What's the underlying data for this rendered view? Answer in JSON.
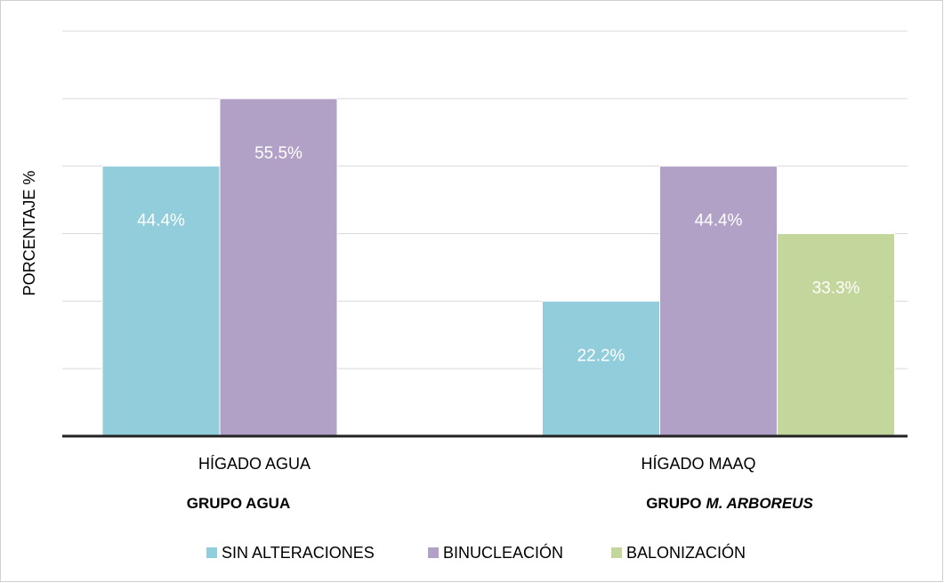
{
  "chart_data": {
    "type": "bar",
    "y_label": "PORCENTAJE  %",
    "categories": [
      "HÍGADO AGUA",
      "HÍGADO MAAQ"
    ],
    "groups": [
      [
        "GRUPO AGUA"
      ],
      [
        "GRUPO",
        "M. ARBOREUS"
      ]
    ],
    "series": [
      {
        "name": "SIN ALTERACIONES",
        "color": "#92cddc",
        "values": [
          44.4,
          22.2
        ],
        "value_labels": [
          "44.4%",
          "22.2%"
        ]
      },
      {
        "name": "BINUCLEACIÓN",
        "color": "#b2a1c7",
        "values": [
          55.5,
          44.4
        ],
        "value_labels": [
          "55.5%",
          "44.4%"
        ]
      },
      {
        "name": "BALONIZACIÓN",
        "color": "#c3d69b",
        "values": [
          null,
          33.3
        ],
        "value_labels": [
          null,
          "33.3%"
        ]
      }
    ],
    "ylim": [
      0,
      66.6
    ],
    "yticks": [
      0,
      11.1,
      22.2,
      33.3,
      44.4,
      55.5,
      66.6
    ],
    "grid": true,
    "legend": "bottom"
  }
}
